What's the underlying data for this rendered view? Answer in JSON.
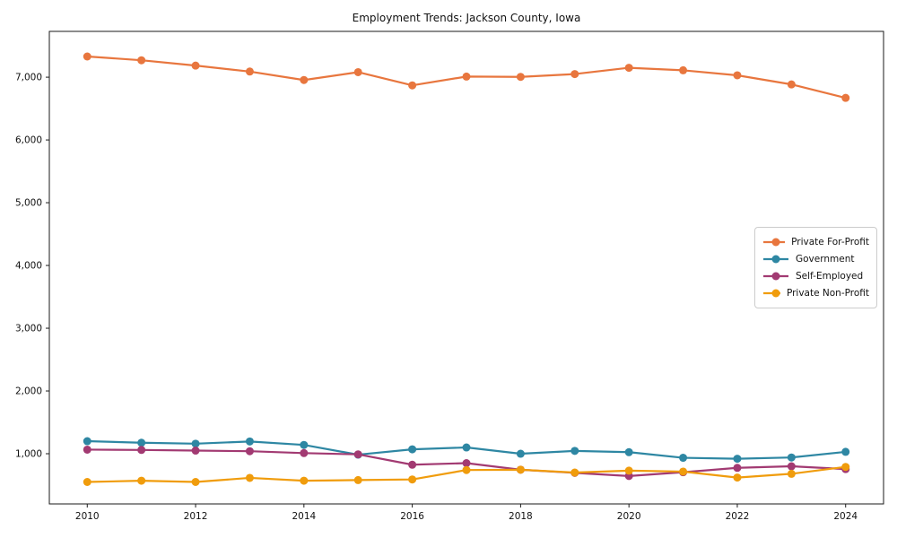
{
  "title": "Employment Trends: Jackson County, Iowa",
  "frame_color": "#1a1a1a",
  "chart_data": {
    "type": "line",
    "title": "Employment Trends: Jackson County, Iowa",
    "xlabel": "",
    "ylabel": "",
    "x": [
      2010,
      2011,
      2012,
      2013,
      2014,
      2015,
      2016,
      2017,
      2018,
      2019,
      2020,
      2021,
      2022,
      2023,
      2024
    ],
    "series": [
      {
        "name": "Private For-Profit",
        "color": "#e8763e",
        "values": [
          7330,
          7270,
          7185,
          7090,
          6955,
          7080,
          6870,
          7010,
          7005,
          7050,
          7150,
          7110,
          7030,
          6885,
          6670
        ]
      },
      {
        "name": "Government",
        "color": "#2e87a3",
        "values": [
          1200,
          1175,
          1160,
          1195,
          1140,
          985,
          1070,
          1100,
          1000,
          1045,
          1025,
          935,
          920,
          940,
          1030
        ]
      },
      {
        "name": "Self-Employed",
        "color": "#a23a72",
        "values": [
          1065,
          1060,
          1050,
          1040,
          1010,
          990,
          825,
          850,
          745,
          695,
          645,
          705,
          775,
          800,
          755
        ]
      },
      {
        "name": "Private Non-Profit",
        "color": "#f09c0c",
        "values": [
          550,
          570,
          550,
          615,
          570,
          580,
          590,
          740,
          745,
          700,
          730,
          715,
          620,
          680,
          790
        ]
      }
    ],
    "xticks": [
      2010,
      2012,
      2014,
      2016,
      2018,
      2020,
      2022,
      2024
    ],
    "yticks": [
      1000,
      2000,
      3000,
      4000,
      5000,
      6000,
      7000
    ],
    "ytick_labels": [
      "1,000",
      "2,000",
      "3,000",
      "4,000",
      "5,000",
      "6,000",
      "7,000"
    ],
    "xlim": [
      2009.3,
      2024.7
    ],
    "ylim": [
      200,
      7730
    ],
    "grid": false,
    "legend_position": "center-right"
  }
}
